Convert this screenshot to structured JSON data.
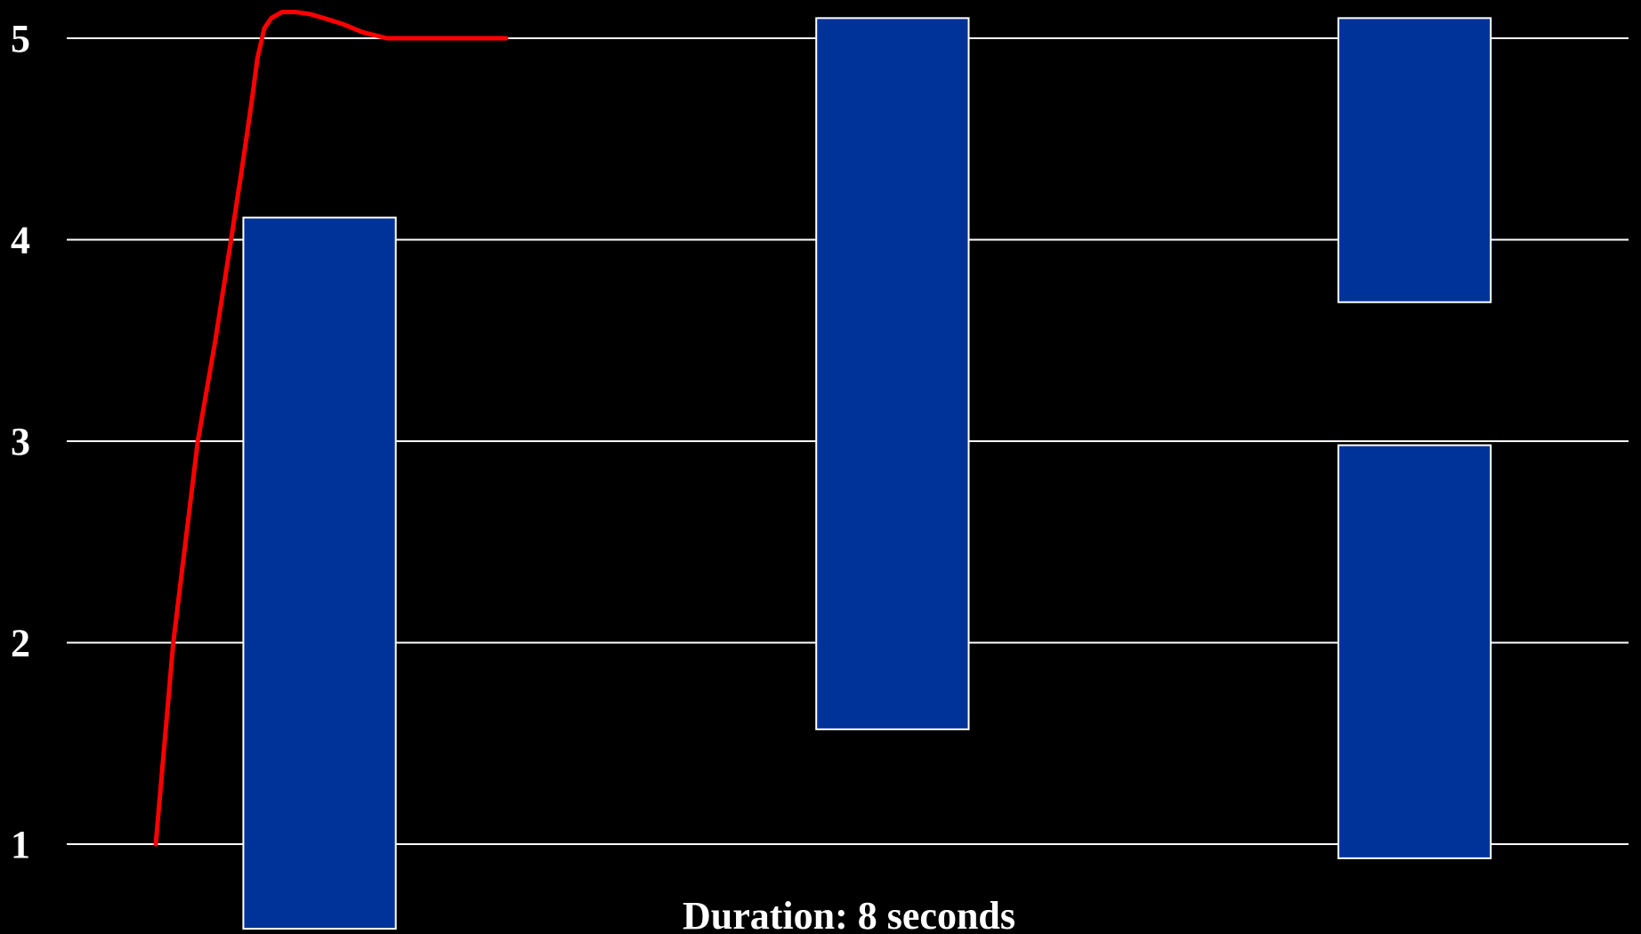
{
  "chart_data": {
    "type": "bar",
    "title": "",
    "xlabel": "",
    "ylabel": "",
    "caption": "Duration: 8 seconds",
    "ylim": [
      0.5,
      5.15
    ],
    "xlim": [
      0,
      8
    ],
    "grid": true,
    "y_ticks": [
      {
        "value": 1,
        "label": "1"
      },
      {
        "value": 2,
        "label": "2"
      },
      {
        "value": 3,
        "label": "3"
      },
      {
        "value": 4,
        "label": "4"
      },
      {
        "value": 5,
        "label": "5"
      }
    ],
    "bars": [
      {
        "name": "bar-1",
        "x_start": 0.5,
        "x_end": 1.37,
        "low": 0.58,
        "high": 4.11
      },
      {
        "name": "bar-2",
        "x_start": 3.77,
        "x_end": 4.64,
        "low": 1.57,
        "high": 5.1
      },
      {
        "name": "bar-3-upper",
        "x_start": 6.75,
        "x_end": 7.62,
        "low": 3.69,
        "high": 5.1
      },
      {
        "name": "bar-3-lower",
        "x_start": 6.75,
        "x_end": 7.62,
        "low": 0.93,
        "high": 2.98
      }
    ],
    "series": [
      {
        "type": "line",
        "x": [
          0.0,
          0.05,
          0.1,
          0.17,
          0.24,
          0.34,
          0.43,
          0.5,
          0.55,
          0.58,
          0.62,
          0.66,
          0.72,
          0.8,
          0.88,
          0.96,
          1.07,
          1.18,
          1.32,
          1.52,
          2.0
        ],
        "y": [
          1.0,
          1.5,
          2.0,
          2.5,
          3.0,
          3.5,
          4.0,
          4.4,
          4.7,
          4.9,
          5.05,
          5.1,
          5.13,
          5.13,
          5.12,
          5.1,
          5.07,
          5.03,
          5.0,
          5.0,
          5.0
        ]
      }
    ]
  },
  "colors": {
    "background": "#000000",
    "bar_fill": "#003399",
    "bar_stroke": "#ffffff",
    "grid": "#ffffff",
    "curve": "#ff0000",
    "text": "#ffffff"
  }
}
